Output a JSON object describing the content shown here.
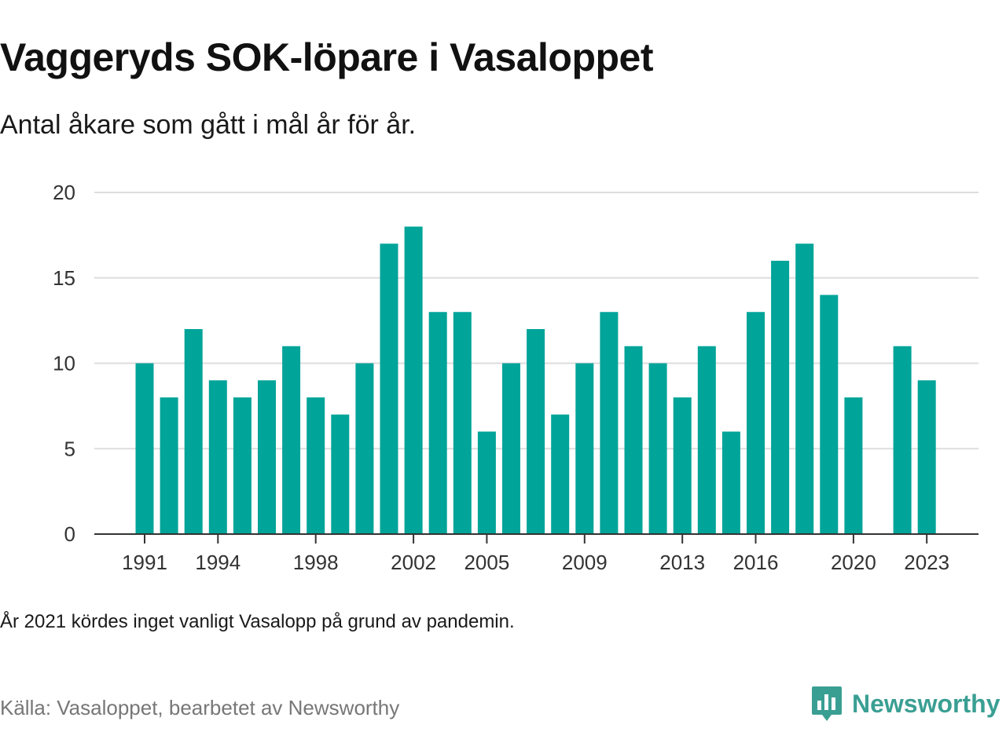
{
  "title": "Vaggeryds SOK-löpare i Vasaloppet",
  "subtitle": "Antal åkare som gått i mål år för år.",
  "note": "År 2021 kördes inget vanligt Vasalopp på grund av pandemin.",
  "source": "Källa: Vasaloppet, bearbetet av Newsworthy",
  "logo": {
    "name": "Newsworthy",
    "color": "#3a9f93"
  },
  "chart_data": {
    "type": "bar",
    "x": [
      1991,
      1992,
      1993,
      1994,
      1995,
      1996,
      1997,
      1998,
      1999,
      2000,
      2001,
      2002,
      2003,
      2004,
      2005,
      2006,
      2007,
      2008,
      2009,
      2010,
      2011,
      2012,
      2013,
      2014,
      2015,
      2016,
      2017,
      2018,
      2019,
      2020,
      2021,
      2022,
      2023
    ],
    "values": [
      10,
      8,
      12,
      9,
      8,
      9,
      11,
      8,
      7,
      10,
      17,
      18,
      13,
      13,
      6,
      10,
      12,
      7,
      10,
      13,
      11,
      10,
      8,
      11,
      6,
      13,
      16,
      17,
      14,
      8,
      null,
      11,
      9
    ],
    "x_tick_labels": [
      "1991",
      "1994",
      "1998",
      "2002",
      "2005",
      "2009",
      "2013",
      "2016",
      "2020",
      "2023"
    ],
    "y_ticks": [
      0,
      5,
      10,
      15,
      20
    ],
    "ylim": [
      0,
      20
    ],
    "bar_color": "#00a499",
    "grid": true,
    "xlabel": "",
    "ylabel": ""
  }
}
